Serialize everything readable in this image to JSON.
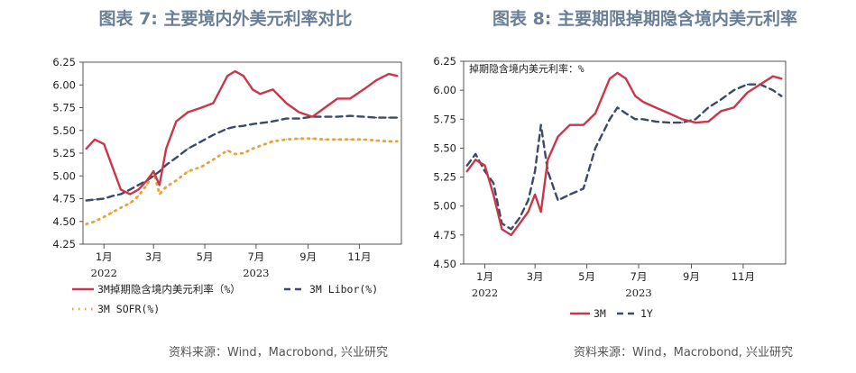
{
  "charts": [
    {
      "title": "图表 7: 主要境内外美元利率对比",
      "source": "资料来源：Wind，Macrobond, 兴业研究",
      "legend": [
        "3M掉期隐含境内美元利率（%）",
        "3M Libor(%)",
        "3M SOFR(%)"
      ]
    },
    {
      "title": "图表 8: 主要期限掉期隐含境内美元利率",
      "source": "资料来源：Wind，Macrobond, 兴业研究",
      "unit_label": "掉期隐含境内美元利率：%",
      "legend": [
        "3M",
        "1Y"
      ]
    }
  ],
  "chart_data": [
    {
      "type": "line",
      "title": "图表 7: 主要境内外美元利率对比",
      "x": [
        "2021-12-15",
        "2021-12-25",
        "2022-01-05",
        "2022-01-15",
        "2022-01-25",
        "2022-02-05",
        "2022-02-15",
        "2022-02-25",
        "2022-03-05",
        "2022-03-12",
        "2022-03-20",
        "2022-04-01",
        "2022-04-15",
        "2022-05-01",
        "2022-05-15",
        "2022-06-01",
        "2022-06-10",
        "2022-06-20",
        "2022-07-01",
        "2022-07-10",
        "2022-07-25",
        "2022-08-10",
        "2022-08-25",
        "2022-09-10",
        "2022-09-25",
        "2022-10-10",
        "2022-10-25",
        "2022-11-10",
        "2022-11-25",
        "2022-12-10",
        "2022-12-20"
      ],
      "x_ticks": [
        "1月",
        "3月",
        "5月",
        "7月",
        "9月",
        "11月"
      ],
      "x_year_labels": [
        "2022",
        "2023"
      ],
      "ylim": [
        4.25,
        6.25
      ],
      "y_ticks": [
        "4.25",
        "4.50",
        "4.75",
        "5.00",
        "5.25",
        "5.50",
        "5.75",
        "6.00",
        "6.25"
      ],
      "series": [
        {
          "name": "3M掉期隐含境内美元利率（%）",
          "color": "#c8374a",
          "style": "solid",
          "values": [
            5.3,
            5.4,
            5.35,
            5.1,
            4.85,
            4.8,
            4.85,
            4.95,
            5.05,
            4.9,
            5.3,
            5.6,
            5.7,
            5.75,
            5.8,
            6.1,
            6.15,
            6.1,
            5.95,
            5.9,
            5.95,
            5.8,
            5.7,
            5.65,
            5.75,
            5.85,
            5.85,
            5.95,
            6.05,
            6.12,
            6.1
          ]
        },
        {
          "name": "3M Libor(%)",
          "color": "#3b4a66",
          "style": "dashed",
          "values": [
            4.73,
            4.74,
            4.75,
            4.78,
            4.8,
            4.85,
            4.9,
            4.95,
            5.0,
            5.05,
            5.12,
            5.2,
            5.3,
            5.38,
            5.45,
            5.52,
            5.54,
            5.55,
            5.57,
            5.58,
            5.6,
            5.63,
            5.63,
            5.65,
            5.65,
            5.65,
            5.66,
            5.65,
            5.64,
            5.64,
            5.64
          ]
        },
        {
          "name": "3M SOFR(%)",
          "color": "#e8a23a",
          "style": "dotted",
          "values": [
            4.47,
            4.5,
            4.55,
            4.6,
            4.65,
            4.7,
            4.78,
            4.9,
            5.05,
            4.8,
            4.88,
            4.95,
            5.05,
            5.1,
            5.18,
            5.28,
            5.24,
            5.25,
            5.3,
            5.33,
            5.38,
            5.4,
            5.41,
            5.41,
            5.4,
            5.4,
            5.4,
            5.4,
            5.39,
            5.38,
            5.38
          ]
        }
      ]
    },
    {
      "type": "line",
      "title": "图表 8: 主要期限掉期隐含境内美元利率",
      "x": [
        "2021-12-15",
        "2021-12-25",
        "2022-01-05",
        "2022-01-15",
        "2022-01-25",
        "2022-02-05",
        "2022-02-15",
        "2022-02-25",
        "2022-03-05",
        "2022-03-12",
        "2022-03-20",
        "2022-04-01",
        "2022-04-15",
        "2022-05-01",
        "2022-05-15",
        "2022-06-01",
        "2022-06-10",
        "2022-06-20",
        "2022-07-01",
        "2022-07-10",
        "2022-07-25",
        "2022-08-10",
        "2022-08-25",
        "2022-09-10",
        "2022-09-25",
        "2022-10-10",
        "2022-10-25",
        "2022-11-10",
        "2022-11-25",
        "2022-12-10",
        "2022-12-20"
      ],
      "x_ticks": [
        "1月",
        "3月",
        "5月",
        "7月",
        "9月",
        "11月"
      ],
      "x_year_labels": [
        "2022",
        "2023"
      ],
      "ylim": [
        4.5,
        6.25
      ],
      "y_ticks": [
        "4.50",
        "4.75",
        "5.00",
        "5.25",
        "5.50",
        "5.75",
        "6.00",
        "6.25"
      ],
      "series": [
        {
          "name": "3M",
          "color": "#c8374a",
          "style": "solid",
          "values": [
            5.3,
            5.4,
            5.35,
            5.1,
            4.8,
            4.75,
            4.85,
            4.95,
            5.1,
            4.95,
            5.4,
            5.6,
            5.7,
            5.7,
            5.8,
            6.1,
            6.15,
            6.1,
            5.95,
            5.9,
            5.85,
            5.8,
            5.75,
            5.72,
            5.73,
            5.82,
            5.85,
            5.98,
            6.05,
            6.12,
            6.1
          ]
        },
        {
          "name": "1Y",
          "color": "#3b4a66",
          "style": "dashed",
          "values": [
            5.35,
            5.45,
            5.3,
            5.2,
            4.85,
            4.8,
            4.9,
            5.05,
            5.3,
            5.7,
            5.3,
            5.05,
            5.1,
            5.15,
            5.5,
            5.75,
            5.85,
            5.8,
            5.75,
            5.75,
            5.73,
            5.72,
            5.72,
            5.75,
            5.85,
            5.92,
            6.0,
            6.05,
            6.05,
            6.0,
            5.95
          ]
        }
      ]
    }
  ]
}
